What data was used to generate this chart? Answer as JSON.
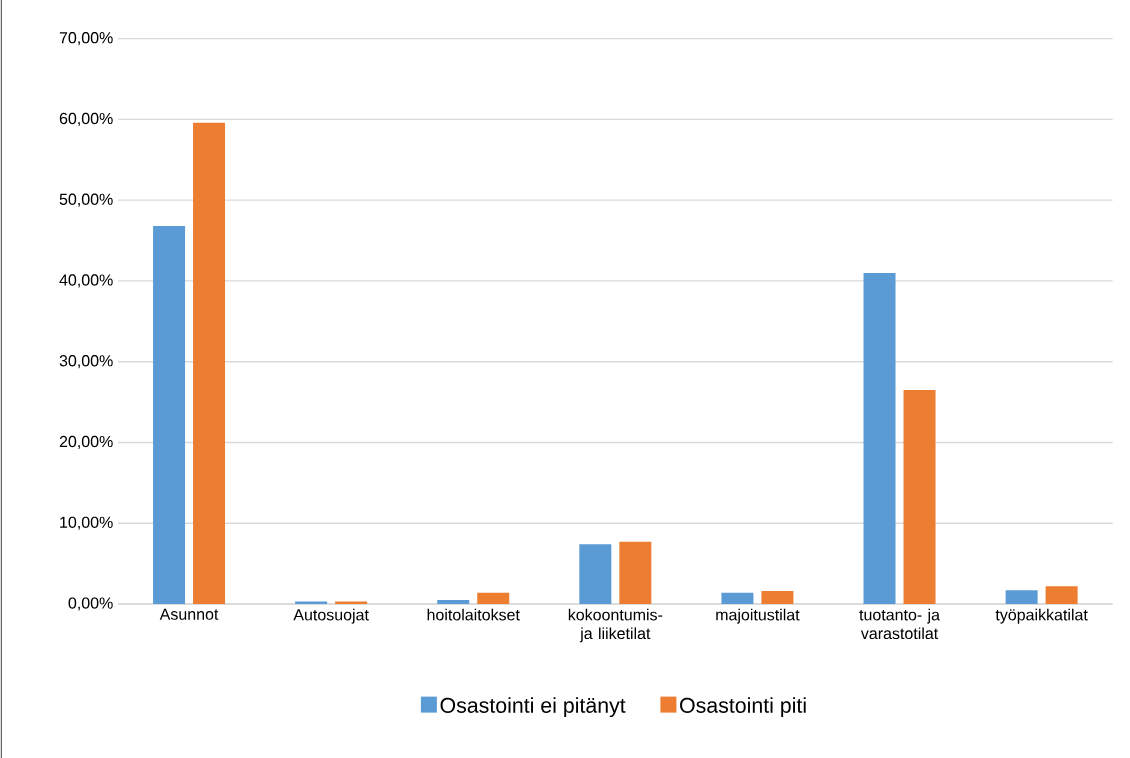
{
  "chart_data": {
    "type": "bar",
    "categories": [
      "Asunnot",
      "Autosuojat",
      "hoitolaitokset",
      "kokoontumis- ja liiketilat",
      "majoitustilat",
      "tuotanto- ja varastotilat",
      "työpaikkatilat"
    ],
    "series": [
      {
        "name": "Osastointi ei pitänyt",
        "color": "#5b9bd5",
        "values": [
          46.8,
          0.3,
          0.5,
          7.4,
          1.4,
          41.0,
          1.7
        ]
      },
      {
        "name": "Osastointi piti",
        "color": "#ed7d31",
        "values": [
          59.6,
          0.3,
          1.4,
          7.7,
          1.6,
          26.5,
          2.2
        ]
      }
    ],
    "ylim": [
      0,
      70
    ],
    "yticks": [
      {
        "value": 0,
        "label": "0,00%"
      },
      {
        "value": 10,
        "label": "10,00%"
      },
      {
        "value": 20,
        "label": "20,00%"
      },
      {
        "value": 30,
        "label": "30,00%"
      },
      {
        "value": 40,
        "label": "40,00%"
      },
      {
        "value": 50,
        "label": "50,00%"
      },
      {
        "value": 60,
        "label": "60,00%"
      },
      {
        "value": 70,
        "label": "70,00%"
      }
    ],
    "grid": "y",
    "legend": "bottom"
  }
}
